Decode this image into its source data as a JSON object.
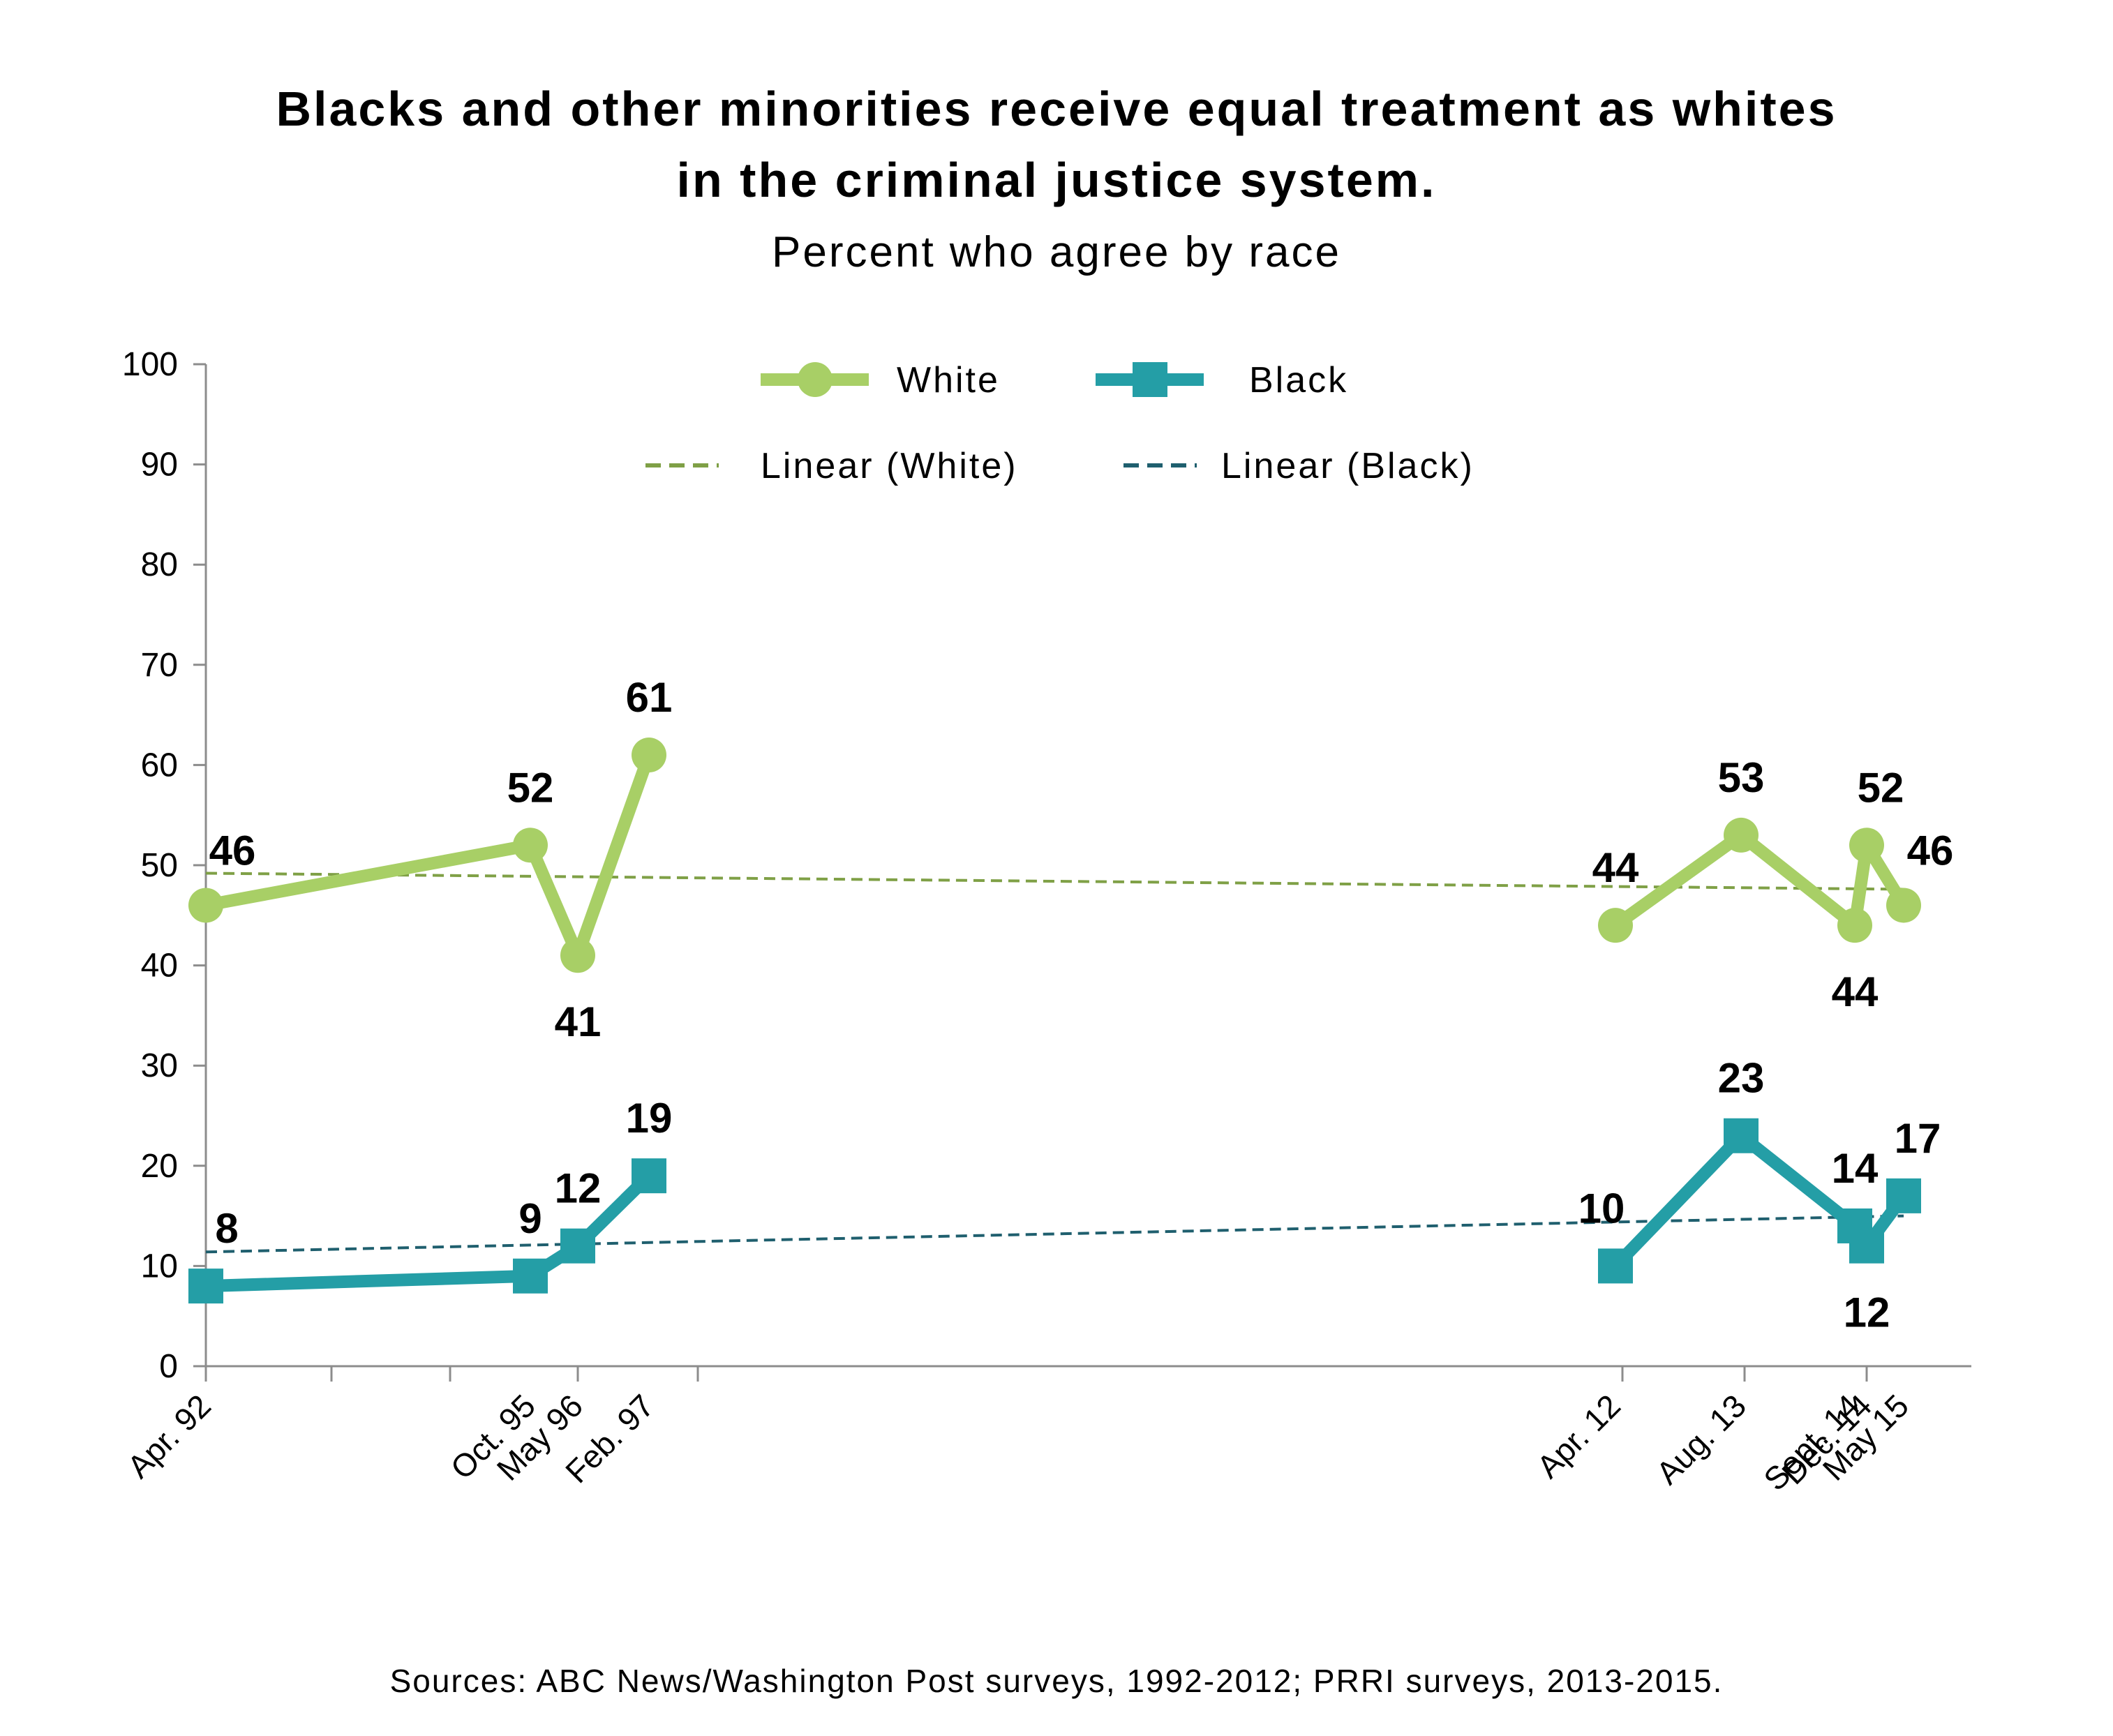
{
  "colors": {
    "white_series": "#a8cf66",
    "black_series": "#249ea6",
    "white_trend": "#7fa046",
    "black_trend": "#1f5f6e",
    "axis": "#8c8c8c"
  },
  "chart_data": {
    "type": "line",
    "title_line1": "Blacks and other minorities receive equal treatment as whites",
    "title_line2": "in the criminal justice system.",
    "subtitle": "Percent who agree by race",
    "source": "Sources: ABC News/Washington Post surveys, 1992-2012; PRRI surveys, 2013-2015.",
    "ylim": [
      0,
      100
    ],
    "yticks": [
      "0",
      "10",
      "20",
      "30",
      "40",
      "50",
      "60",
      "70",
      "80",
      "90",
      "100"
    ],
    "x_labels": [
      "Apr. 92",
      "Oct. 95",
      "May 96",
      "Feb. 97",
      "Apr. 12",
      "Aug. 13",
      "Sept. 14",
      "Dec. 14",
      "May 15"
    ],
    "x_dates": [
      "1992-04",
      "1995-10",
      "1996-05",
      "1997-02",
      "2012-04",
      "2013-08",
      "2014-09",
      "2014-12",
      "2015-05"
    ],
    "grid": false,
    "legend_position": "top-center",
    "legend": {
      "white": "White",
      "black": "Black",
      "white_trend": "Linear (White)",
      "black_trend": "Linear (Black)"
    },
    "series": [
      {
        "name": "White",
        "marker": "circle",
        "segments": [
          [
            0,
            1,
            2,
            3
          ],
          [
            4,
            5,
            6,
            7,
            8
          ]
        ],
        "values": [
          46,
          52,
          41,
          61,
          44,
          53,
          44,
          52,
          46
        ],
        "labels": [
          "46",
          "52",
          "41",
          "61",
          "44",
          "53",
          "44",
          "52",
          "46"
        ]
      },
      {
        "name": "Black",
        "marker": "square",
        "segments": [
          [
            0,
            1,
            2,
            3
          ],
          [
            4,
            5,
            6,
            7,
            8
          ]
        ],
        "values": [
          8,
          9,
          12,
          19,
          10,
          23,
          14,
          12,
          17
        ],
        "labels": [
          "8",
          "9",
          "12",
          "19",
          "10",
          "23",
          "14",
          "12",
          "17"
        ]
      }
    ],
    "trendlines": [
      {
        "name": "Linear (White)",
        "start": 49.2,
        "end": 47.6
      },
      {
        "name": "Linear (Black)",
        "start": 11.4,
        "end": 15.0
      }
    ]
  }
}
